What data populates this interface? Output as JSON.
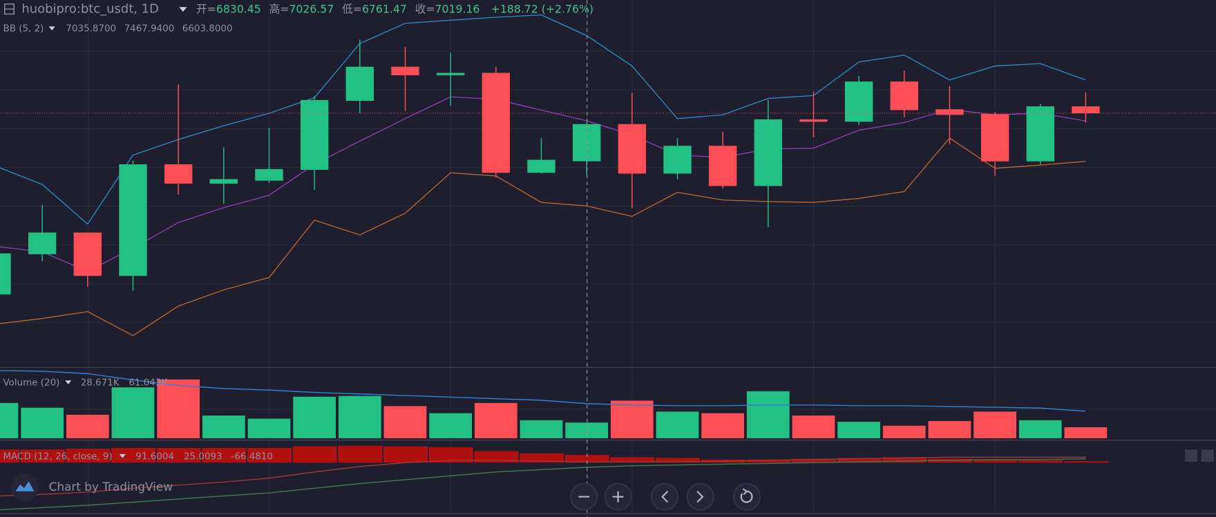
{
  "header": {
    "symbol": "huobipro:btc_usdt, 1D",
    "ohlc": [
      {
        "label": "开=",
        "value": "6830.45"
      },
      {
        "label": "高=",
        "value": "7026.57"
      },
      {
        "label": "低=",
        "value": "6761.47"
      },
      {
        "label": "收=",
        "value": "7019.16"
      }
    ],
    "change": "+188.72 (+2.76%)"
  },
  "bb_legend": {
    "name": "BB (5, 2)",
    "values": [
      "7035.8700",
      "7467.9400",
      "6603.8000"
    ]
  },
  "volume_legend": {
    "name": "Volume (20)",
    "values": [
      "28.671K",
      "61.043K"
    ]
  },
  "macd_legend": {
    "name": "MACD (12, 26, close, 9)",
    "values": [
      "91.6004",
      "25.0093",
      "-66.4810"
    ]
  },
  "branding": "Chart by TradingView",
  "chart_data": [
    {
      "type": "candlestick",
      "up_color": "#22c083",
      "down_color": "#fe4f57",
      "ylim": [
        5789,
        7648
      ],
      "open": [
        6155,
        6359,
        6469,
        6249,
        6815,
        6717,
        6732,
        6787,
        7137,
        7310,
        7267,
        7279,
        6772,
        6830.45,
        7019,
        6768,
        6909,
        6705,
        7043,
        7031,
        7235,
        7094,
        7070,
        6830,
        7109
      ],
      "high": [
        6363,
        6610,
        6469,
        6834,
        7220,
        6901,
        7000,
        7161,
        7448,
        7412,
        7381,
        7310,
        6948,
        7026.57,
        7176,
        6948,
        6980,
        7141,
        7184,
        7263,
        7290,
        7212,
        7078,
        7121,
        7180
      ],
      "low": [
        6155,
        6324,
        6194,
        6174,
        6662,
        6614,
        6721,
        6685,
        7074,
        7086,
        7113,
        6748,
        6768,
        6761.47,
        6591,
        6740,
        6693,
        6496,
        6952,
        7015,
        7054,
        6917,
        6756,
        6815,
        7027
      ],
      "close": [
        6363,
        6469,
        6249,
        6815,
        6717,
        6740,
        6791,
        7141,
        7310,
        7267,
        7279,
        6772,
        6838,
        7019.16,
        6768,
        6909,
        6705,
        7043,
        7031,
        7235,
        7090,
        7066,
        6830,
        7109,
        7074
      ],
      "series": [
        {
          "color": "#2b8cc4",
          "values": [
            6803,
            6713,
            6512,
            6862,
            6941,
            7011,
            7074,
            7153,
            7428,
            7530,
            7546,
            7561,
            7573,
            7467.94,
            7314,
            7047,
            7066,
            7149,
            7164,
            7334,
            7369,
            7243,
            7314,
            7326,
            7243
          ]
        },
        {
          "color": "#8d3fb8",
          "values": [
            6398,
            6371,
            6272,
            6390,
            6520,
            6595,
            6658,
            6815,
            6933,
            7047,
            7157,
            7145,
            7090,
            7035.87,
            6964,
            6862,
            6850,
            6893,
            6897,
            6988,
            7027,
            7094,
            7066,
            7074,
            7035
          ]
        },
        {
          "color": "#b8682c",
          "values": [
            6005,
            6033,
            6068,
            5946,
            6096,
            6178,
            6241,
            6532,
            6457,
            6567,
            6772,
            6756,
            6622,
            6603.8,
            6551,
            6673,
            6634,
            6626,
            6622,
            6642,
            6677,
            6948,
            6795,
            6811,
            6830
          ]
        }
      ]
    },
    {
      "type": "volume",
      "ylim": [
        0,
        124215
      ],
      "values": [
        62790,
        54600,
        42315,
        90090,
        103740,
        40950,
        35490,
        73710,
        75075,
        57330,
        45045,
        62790,
        32760,
        28671,
        66885,
        47775,
        45045,
        83265,
        40950,
        30030,
        23205,
        31395,
        47775,
        32760,
        20475
      ],
      "series": [
        {
          "color": "#2f7fd8",
          "values": [
            118755,
            117390,
            113295,
            102375,
            92820,
            87360,
            84630,
            80535,
            77805,
            75075,
            72345,
            69615,
            66885,
            61043,
            58695,
            57330,
            57330,
            58695,
            58695,
            57330,
            57330,
            55965,
            54600,
            53235,
            47775
          ]
        }
      ]
    },
    {
      "type": "macd",
      "color": "#b01010",
      "ylim": [
        -660,
        270
      ],
      "values": [
        170,
        170,
        180,
        190,
        190,
        190,
        190,
        210,
        220,
        210,
        200,
        150,
        120,
        100,
        70,
        60,
        40,
        40,
        50,
        60,
        70,
        50,
        30,
        30,
        20
      ],
      "series": [
        {
          "color": "#3f7a4e",
          "values": [
            -610,
            -580,
            -550,
            -510,
            -470,
            -430,
            -390,
            -330,
            -270,
            -220,
            -170,
            -120,
            -90,
            -60,
            -40,
            -30,
            -20,
            -10,
            0,
            10,
            20,
            30,
            40,
            40,
            50
          ]
        },
        {
          "color": "#9a3a3a",
          "values": [
            -430,
            -410,
            -380,
            -330,
            -290,
            -250,
            -200,
            -120,
            -50,
            0,
            30,
            30,
            20,
            10,
            10,
            10,
            20,
            30,
            40,
            50,
            60,
            70,
            70,
            70,
            70
          ]
        }
      ]
    }
  ]
}
